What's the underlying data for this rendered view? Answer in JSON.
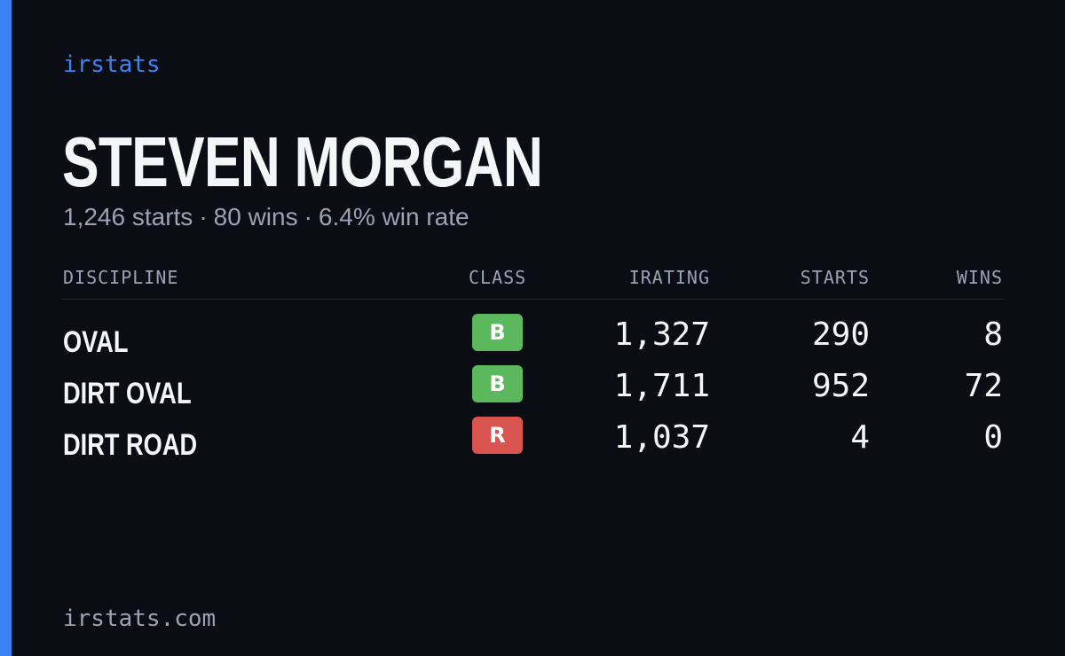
{
  "brand": "irstats",
  "colors": {
    "accent": "#3b82f6",
    "background": "#0a0d14",
    "class_b": "#5cb85c",
    "class_r": "#d9534f"
  },
  "player": {
    "name": "STEVEN MORGAN",
    "summary": {
      "starts": "1,246 starts",
      "wins": "80 wins",
      "win_rate": "6.4% win rate",
      "separator": "·"
    }
  },
  "table": {
    "headers": {
      "discipline": "DISCIPLINE",
      "class": "CLASS",
      "irating": "IRATING",
      "starts": "STARTS",
      "wins": "WINS"
    },
    "rows": [
      {
        "discipline": "OVAL",
        "class": "B",
        "class_color": "#5cb85c",
        "irating": "1,327",
        "starts": "290",
        "wins": "8"
      },
      {
        "discipline": "DIRT OVAL",
        "class": "B",
        "class_color": "#5cb85c",
        "irating": "1,711",
        "starts": "952",
        "wins": "72"
      },
      {
        "discipline": "DIRT ROAD",
        "class": "R",
        "class_color": "#d9534f",
        "irating": "1,037",
        "starts": "4",
        "wins": "0"
      }
    ]
  },
  "footer": {
    "domain": "irstats.com"
  }
}
